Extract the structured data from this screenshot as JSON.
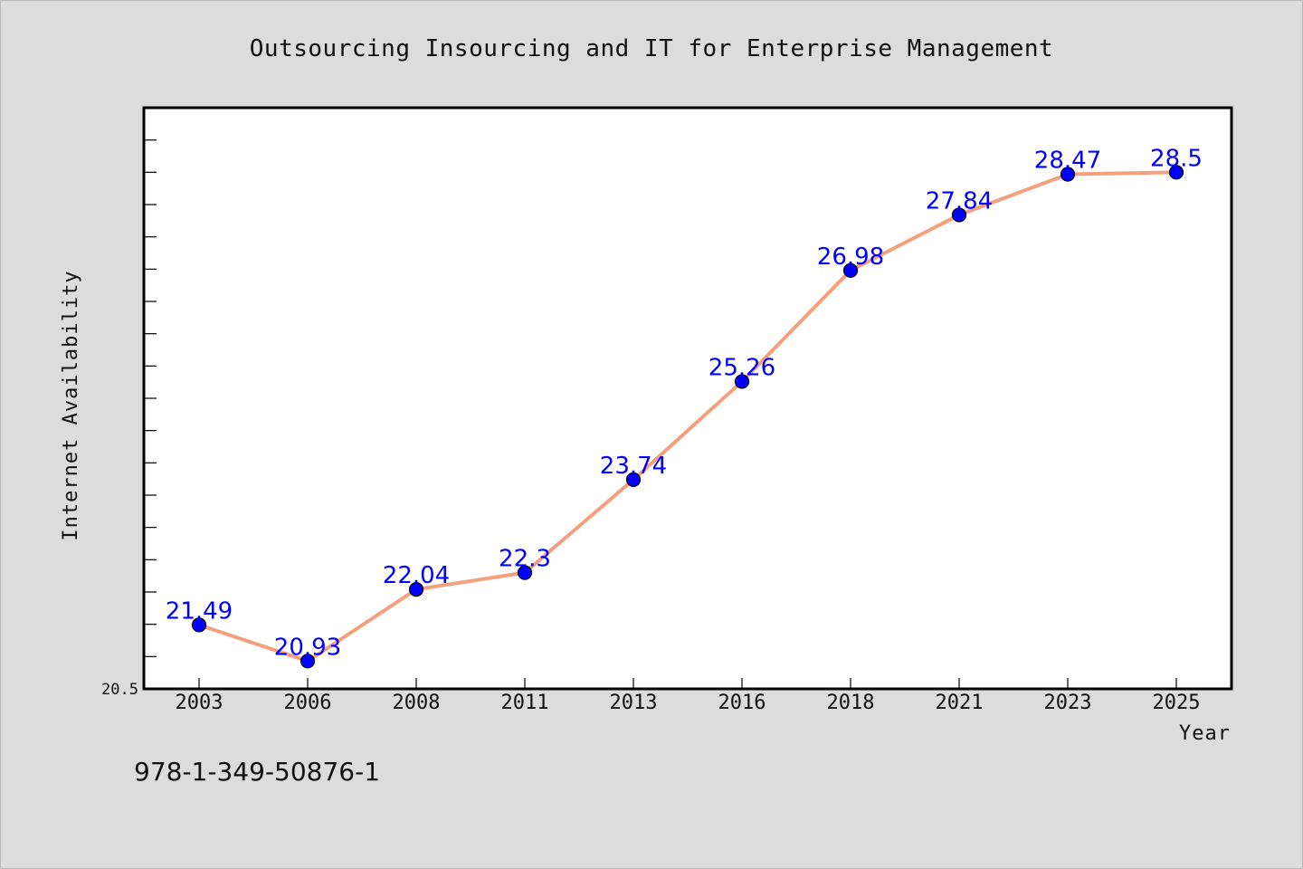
{
  "chart_data": {
    "type": "line",
    "title": "Outsourcing Insourcing and IT for Enterprise Management",
    "xlabel": "Year",
    "ylabel": "Internet Availability",
    "categories": [
      "2003",
      "2006",
      "2008",
      "2011",
      "2013",
      "2016",
      "2018",
      "2021",
      "2023",
      "2025"
    ],
    "series": [
      {
        "values": [
          21.49,
          20.93,
          22.04,
          22.3,
          23.74,
          25.26,
          26.98,
          27.84,
          28.47,
          28.5
        ],
        "labels": [
          "21.49",
          "20.93",
          "22.04",
          "22.3",
          "23.74",
          "25.26",
          "26.98",
          "27.84",
          "28.47",
          "28.5"
        ],
        "line_color": "#f4a07e",
        "marker_color": "#0000ff"
      }
    ],
    "ylim": [
      20.5,
      29.5
    ],
    "y_tick_labels": [
      "20.5"
    ],
    "grid": false,
    "legend": "none"
  },
  "footnote": "978-1-349-50876-1",
  "colors": {
    "background": "#dcdcdc",
    "plot_background": "#ffffff",
    "label_color": "#0000ff"
  }
}
